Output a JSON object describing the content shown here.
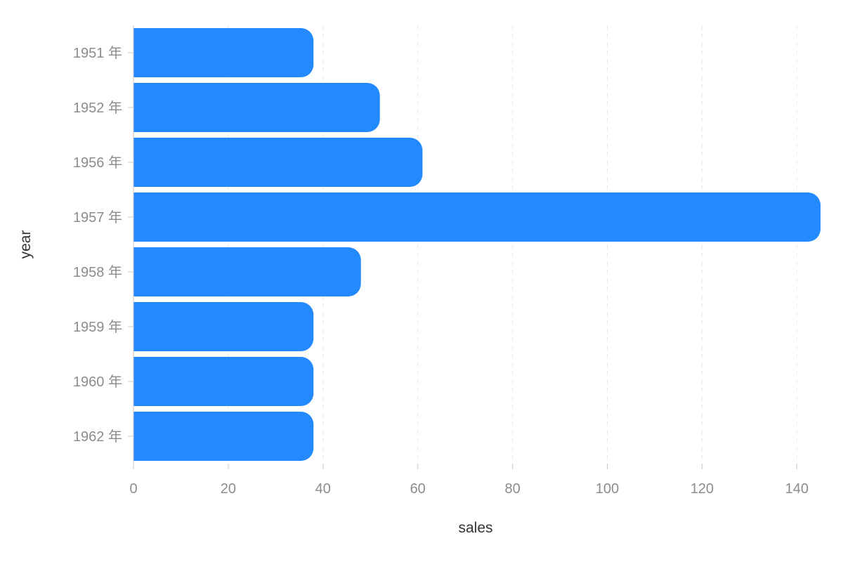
{
  "chart_data": {
    "type": "bar",
    "orientation": "horizontal",
    "categories": [
      "1951 年",
      "1952 年",
      "1956 年",
      "1957 年",
      "1958 年",
      "1959 年",
      "1960 年",
      "1962 年"
    ],
    "values": [
      38,
      52,
      61,
      145,
      48,
      38,
      38,
      38
    ],
    "xlabel": "sales",
    "ylabel": "year",
    "xlim": [
      0,
      145
    ],
    "x_ticks": [
      0,
      20,
      40,
      60,
      80,
      100,
      120,
      140
    ],
    "grid": "vertical-dashed",
    "bar_color": "#2389ff"
  }
}
